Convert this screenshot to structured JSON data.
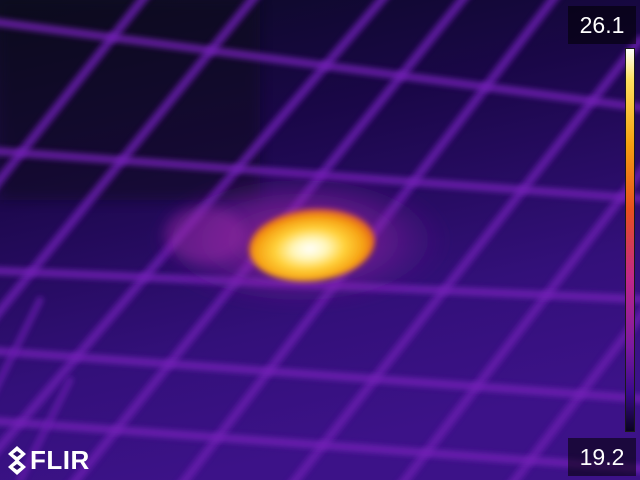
{
  "overlay": {
    "max_temperature": "26.1",
    "min_temperature": "19.2",
    "brand": "FLIR"
  },
  "palette": {
    "name": "iron",
    "colors": [
      "#1a0440",
      "#3a0a8a",
      "#7a1aa0",
      "#c0288a",
      "#e8501e",
      "#f5a010",
      "#fde060",
      "#ffffff"
    ]
  },
  "icons": {
    "logo": "flir-diamond-logo-icon"
  }
}
